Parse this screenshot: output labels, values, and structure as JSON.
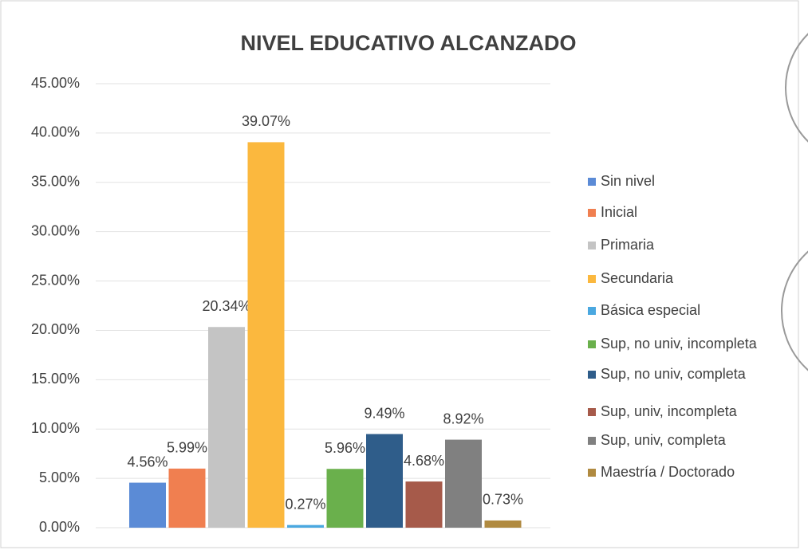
{
  "chart_data": {
    "type": "bar",
    "title": "NIVEL EDUCATIVO ALCANZADO",
    "ylim": [
      0,
      45
    ],
    "yticks": [
      {
        "value": 0,
        "label": "0.00%"
      },
      {
        "value": 5,
        "label": "5.00%"
      },
      {
        "value": 10,
        "label": "10.00%"
      },
      {
        "value": 15,
        "label": "15.00%"
      },
      {
        "value": 20,
        "label": "20.00%"
      },
      {
        "value": 25,
        "label": "25.00%"
      },
      {
        "value": 30,
        "label": "30.00%"
      },
      {
        "value": 35,
        "label": "35.00%"
      },
      {
        "value": 40,
        "label": "40.00%"
      },
      {
        "value": 45,
        "label": "45.00%"
      }
    ],
    "grid": true,
    "legend": "right",
    "series": [
      {
        "name": "Sin nivel",
        "color": "#5b8bd6",
        "values": [
          4.56
        ],
        "value_labels": [
          "4.56%"
        ]
      },
      {
        "name": "Inicial",
        "color": "#f07f50",
        "values": [
          5.99
        ],
        "value_labels": [
          "5.99%"
        ]
      },
      {
        "name": "Primaria",
        "color": "#c4c4c4",
        "values": [
          20.34
        ],
        "value_labels": [
          "20.34%"
        ]
      },
      {
        "name": "Secundaria",
        "color": "#fbb83e",
        "values": [
          39.07
        ],
        "value_labels": [
          "39.07%"
        ]
      },
      {
        "name": "Básica especial",
        "color": "#4aa8e0",
        "values": [
          0.27
        ],
        "value_labels": [
          "0.27%"
        ]
      },
      {
        "name": "Sup, no univ, incompleta",
        "color": "#6ab04c",
        "values": [
          5.96
        ],
        "value_labels": [
          "5.96%"
        ]
      },
      {
        "name": "Sup, no univ, completa",
        "color": "#2f5d8a",
        "values": [
          9.49
        ],
        "value_labels": [
          "9.49%"
        ]
      },
      {
        "name": "Sup, univ, incompleta",
        "color": "#a65a4a",
        "values": [
          4.68
        ],
        "value_labels": [
          "4.68%"
        ]
      },
      {
        "name": "Sup, univ, completa",
        "color": "#808080",
        "values": [
          8.92
        ],
        "value_labels": [
          "8.92%"
        ]
      },
      {
        "name": "Maestría / Doctorado",
        "color": "#b08a40",
        "values": [
          0.73
        ],
        "value_labels": [
          "0.73%"
        ]
      }
    ]
  }
}
